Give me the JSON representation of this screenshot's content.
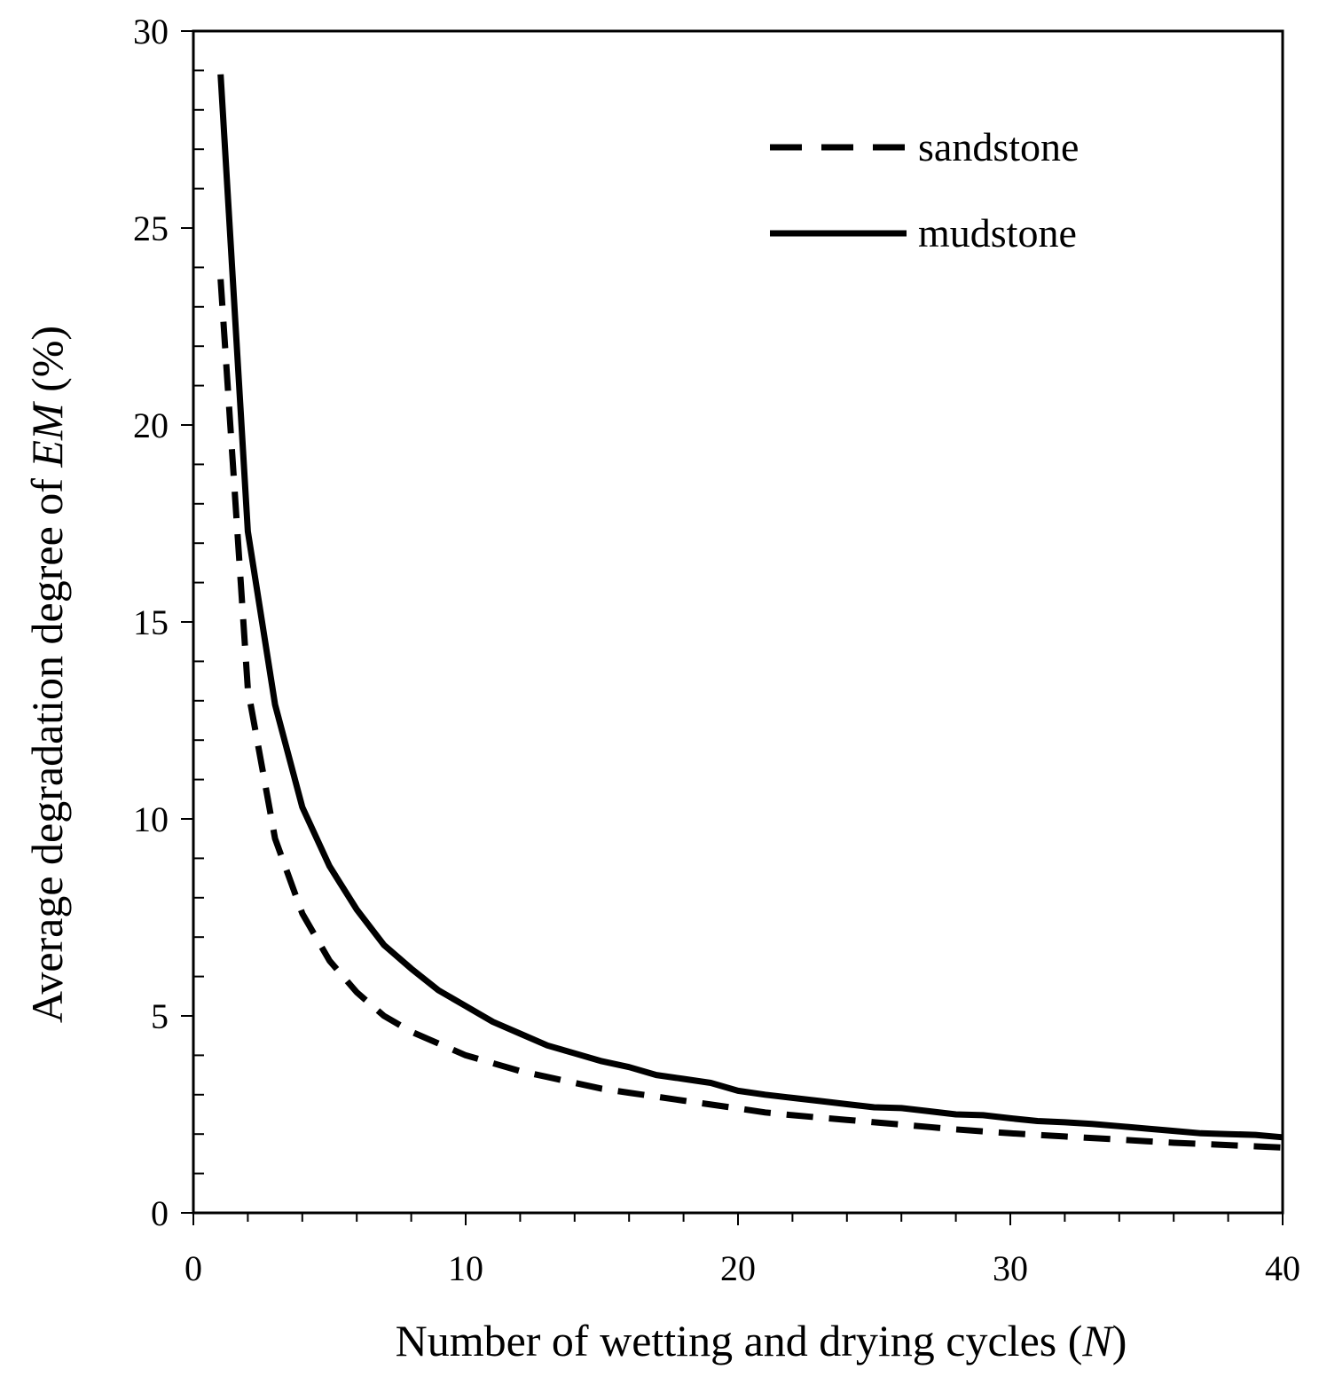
{
  "chart_data": {
    "type": "line",
    "title": "",
    "xlabel": {
      "prefix": "Number of wetting and drying cycles (",
      "italic": "N",
      "suffix": ")"
    },
    "ylabel": {
      "prefix": "Average degradation degree of ",
      "italic": "EM",
      "suffix": " (%)"
    },
    "xlim": [
      0,
      40
    ],
    "ylim": [
      0,
      30
    ],
    "xticks": [
      "0",
      "10",
      "20",
      "30",
      "40"
    ],
    "yticks": [
      "0",
      "5",
      "10",
      "15",
      "20",
      "25",
      "30"
    ],
    "grid": false,
    "legend_position": "top-right",
    "x": [
      1,
      2,
      3,
      4,
      5,
      6,
      7,
      8,
      9,
      10,
      11,
      12,
      13,
      14,
      15,
      16,
      17,
      18,
      19,
      20,
      21,
      22,
      23,
      24,
      25,
      26,
      27,
      28,
      29,
      30,
      31,
      32,
      33,
      34,
      35,
      36,
      37,
      38,
      39,
      40
    ],
    "series": [
      {
        "name": "sandstone",
        "style": "dashed",
        "color": "#000000",
        "values": [
          23.7,
          13.3,
          9.5,
          7.6,
          6.4,
          5.6,
          5.0,
          4.6,
          4.3,
          4.0,
          3.8,
          3.6,
          3.45,
          3.3,
          3.15,
          3.05,
          2.95,
          2.85,
          2.75,
          2.65,
          2.55,
          2.48,
          2.42,
          2.36,
          2.3,
          2.24,
          2.18,
          2.12,
          2.07,
          2.02,
          1.98,
          1.94,
          1.9,
          1.86,
          1.82,
          1.78,
          1.75,
          1.72,
          1.69,
          1.66
        ]
      },
      {
        "name": "mudstone",
        "style": "solid",
        "color": "#000000",
        "values": [
          28.9,
          17.3,
          12.9,
          10.3,
          8.8,
          7.7,
          6.8,
          6.2,
          5.65,
          5.25,
          4.85,
          4.55,
          4.25,
          4.05,
          3.85,
          3.7,
          3.5,
          3.4,
          3.3,
          3.1,
          3.0,
          2.92,
          2.84,
          2.76,
          2.68,
          2.66,
          2.58,
          2.5,
          2.48,
          2.4,
          2.33,
          2.3,
          2.26,
          2.2,
          2.14,
          2.08,
          2.02,
          2.0,
          1.98,
          1.92
        ]
      }
    ]
  }
}
